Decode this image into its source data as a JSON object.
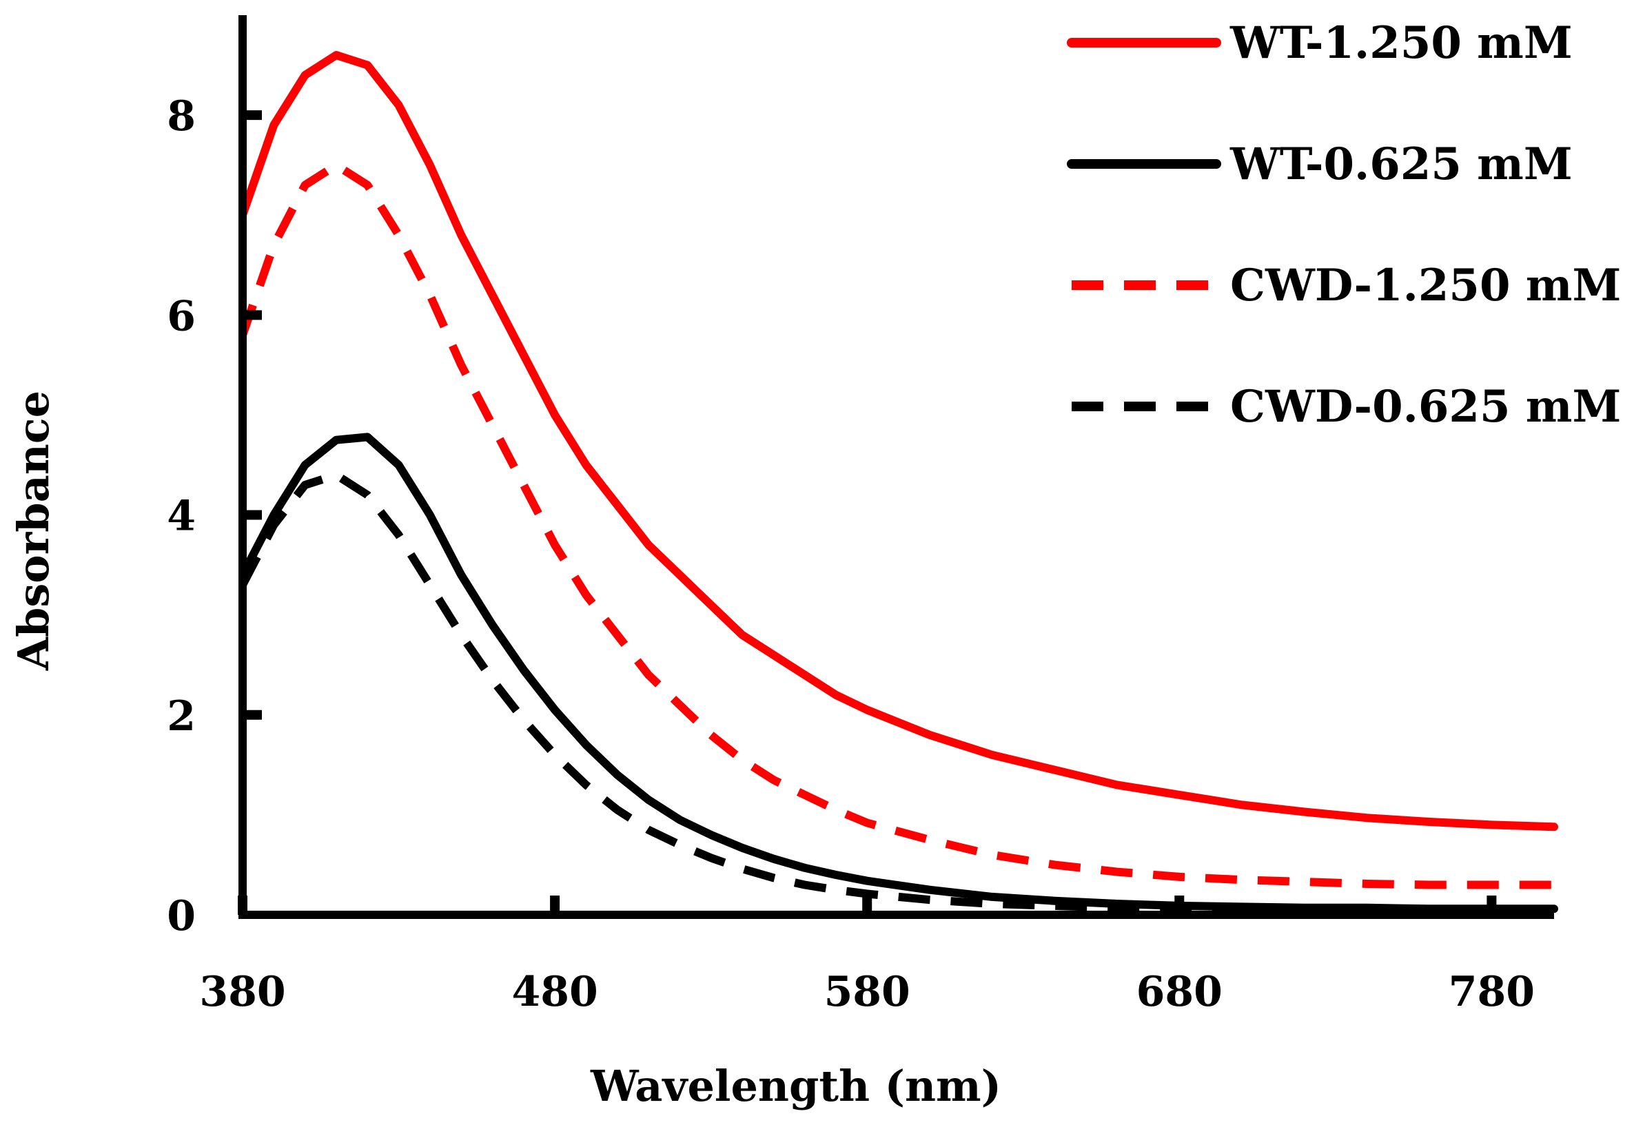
{
  "chart_data": {
    "type": "line",
    "title": "",
    "xlabel": "Wavelength (nm)",
    "ylabel": "Absorbance",
    "xlim": [
      380,
      800
    ],
    "ylim": [
      0,
      9
    ],
    "xticks": [
      380,
      480,
      580,
      680,
      780
    ],
    "xtick_labels": [
      "380",
      "480",
      "580",
      "680",
      "780"
    ],
    "yticks": [
      0,
      2,
      4,
      6,
      8
    ],
    "ytick_labels": [
      "0",
      "2",
      "4",
      "6",
      "8"
    ],
    "grid": false,
    "legend_position": "top-right",
    "x": [
      380,
      390,
      400,
      410,
      420,
      430,
      440,
      450,
      460,
      470,
      480,
      490,
      500,
      510,
      520,
      530,
      540,
      550,
      560,
      570,
      580,
      600,
      620,
      640,
      660,
      680,
      700,
      720,
      740,
      760,
      780,
      800
    ],
    "series": [
      {
        "name": "WT-1.250 mM",
        "color": "#ff0000",
        "dash": "solid",
        "values": [
          7.0,
          7.9,
          8.4,
          8.6,
          8.5,
          8.1,
          7.5,
          6.8,
          6.2,
          5.6,
          5.0,
          4.5,
          4.1,
          3.7,
          3.4,
          3.1,
          2.8,
          2.6,
          2.4,
          2.2,
          2.05,
          1.8,
          1.6,
          1.45,
          1.3,
          1.2,
          1.1,
          1.03,
          0.97,
          0.93,
          0.9,
          0.88
        ]
      },
      {
        "name": "WT-0.625 mM",
        "color": "#000000",
        "dash": "solid",
        "values": [
          3.4,
          4.0,
          4.5,
          4.75,
          4.78,
          4.5,
          4.0,
          3.4,
          2.9,
          2.45,
          2.05,
          1.7,
          1.4,
          1.15,
          0.95,
          0.8,
          0.67,
          0.56,
          0.47,
          0.4,
          0.34,
          0.25,
          0.18,
          0.14,
          0.11,
          0.09,
          0.08,
          0.07,
          0.07,
          0.06,
          0.06,
          0.06
        ]
      },
      {
        "name": "CWD-1.250 mM",
        "color": "#ff0000",
        "dash": "dashed",
        "values": [
          5.8,
          6.7,
          7.3,
          7.5,
          7.3,
          6.8,
          6.2,
          5.5,
          4.9,
          4.3,
          3.7,
          3.2,
          2.8,
          2.4,
          2.1,
          1.8,
          1.55,
          1.35,
          1.2,
          1.05,
          0.92,
          0.75,
          0.6,
          0.5,
          0.43,
          0.38,
          0.35,
          0.33,
          0.31,
          0.3,
          0.3,
          0.3
        ]
      },
      {
        "name": "CWD-0.625 mM",
        "color": "#000000",
        "dash": "dashed",
        "values": [
          3.3,
          3.9,
          4.3,
          4.4,
          4.2,
          3.8,
          3.3,
          2.8,
          2.35,
          1.95,
          1.6,
          1.3,
          1.05,
          0.85,
          0.7,
          0.57,
          0.46,
          0.37,
          0.3,
          0.25,
          0.21,
          0.15,
          0.11,
          0.09,
          0.07,
          0.06,
          0.06,
          0.05,
          0.05,
          0.05,
          0.05,
          0.05
        ]
      }
    ]
  }
}
